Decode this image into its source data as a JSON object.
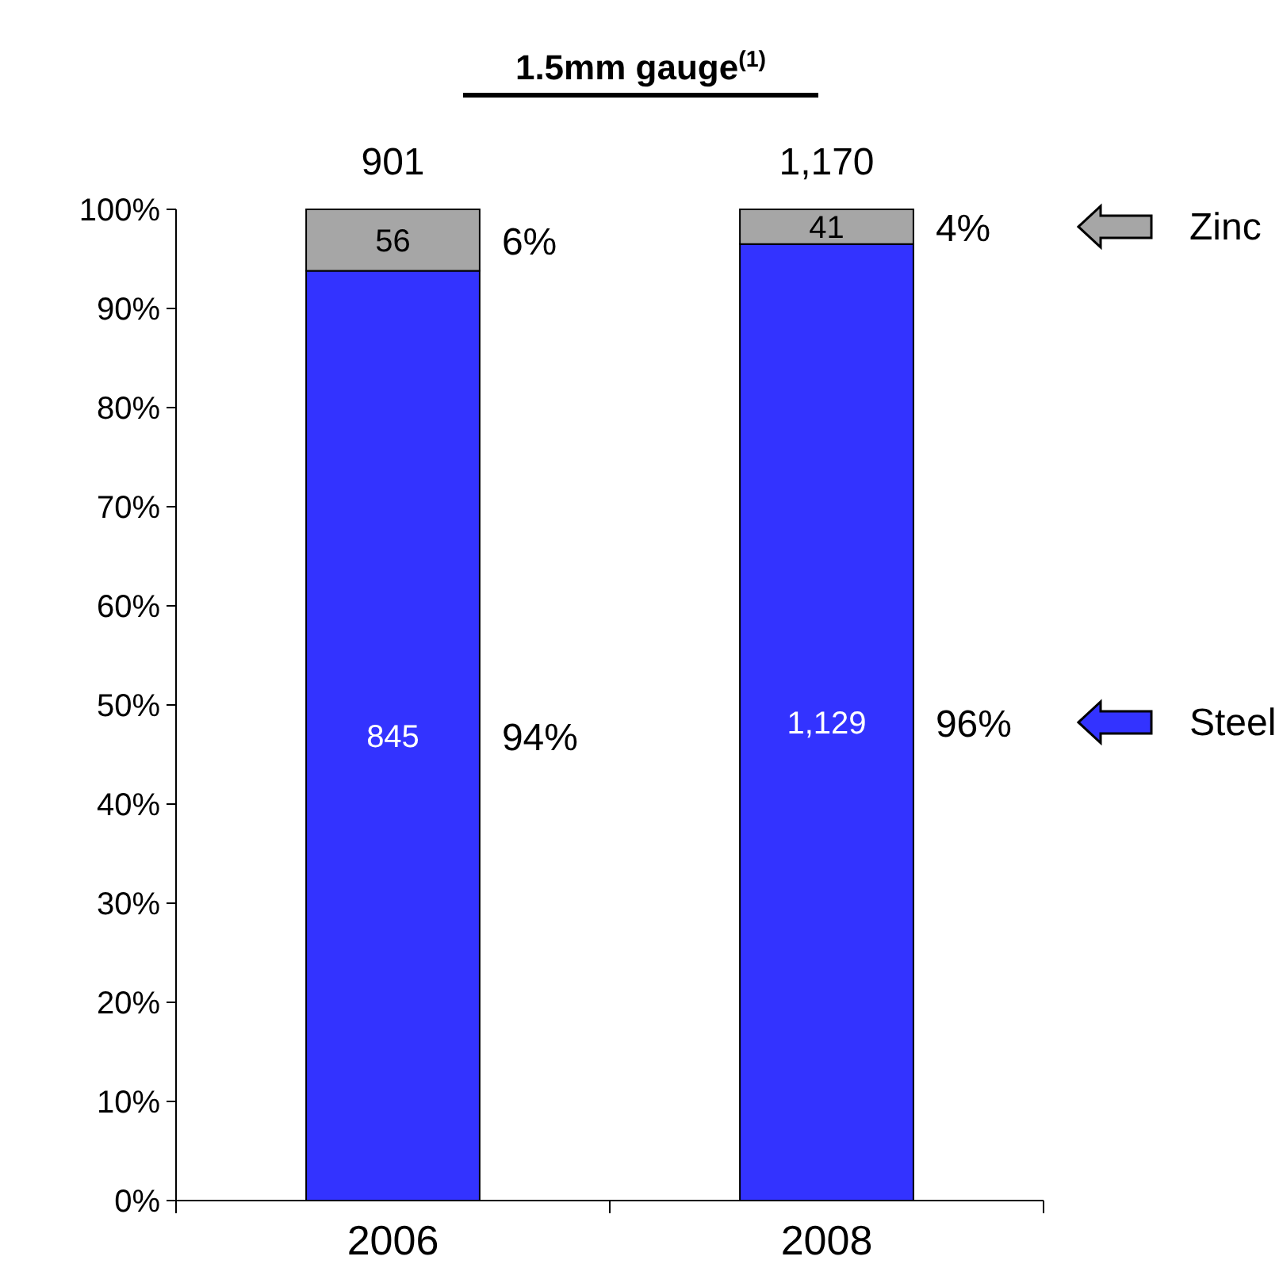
{
  "chart_data": {
    "type": "bar",
    "title": "1.5mm gauge$^{(1)}$",
    "categories": [
      "2006",
      "2008"
    ],
    "stacked": true,
    "series": [
      {
        "name": "Steel",
        "color": "#3333ff",
        "values": [
          93.8,
          96.5
        ]
      },
      {
        "name": "Zinc",
        "color": "#a6a6a6",
        "values": [
          6.2,
          3.5
        ]
      }
    ],
    "ylim": [
      0,
      100
    ],
    "yticks": [
      {
        "value": 0,
        "label": "0%"
      },
      {
        "value": 10,
        "label": "10%"
      },
      {
        "value": 20,
        "label": "20%"
      },
      {
        "value": 30,
        "label": "30%"
      },
      {
        "value": 40,
        "label": "40%"
      },
      {
        "value": 50,
        "label": "50%"
      },
      {
        "value": 60,
        "label": "60%"
      },
      {
        "value": 70,
        "label": "70%"
      },
      {
        "value": 80,
        "label": "80%"
      },
      {
        "value": 90,
        "label": "90%"
      },
      {
        "value": 100,
        "label": "100%"
      }
    ],
    "annotations": [
      "845",
      "56",
      "901",
      "94%",
      "6%",
      "1,129",
      "41",
      "1,170",
      "96%",
      "4%"
    ],
    "legend": "right",
    "grid": false
  }
}
